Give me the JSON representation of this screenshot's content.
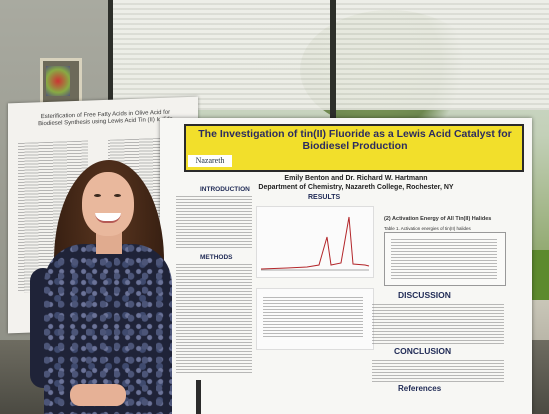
{
  "poster_main": {
    "title": "The Investigation of tin(II) Fluoride as a Lewis Acid Catalyst for Biodiesel Production",
    "authors": "Emily Benton and Dr. Richard W. Hartmann",
    "affiliation": "Department of Chemistry, Nazareth College, Rochester, NY",
    "logo_text": "Nazareth",
    "sections": {
      "introduction": "INTRODUCTION",
      "results": "RESULTS",
      "methods": "METHODS",
      "discussion": "DISCUSSION",
      "conclusion": "CONCLUSION",
      "references": "References"
    },
    "table_caption": "(2) Activation Energy of All Tin(II) Halides",
    "table_title": "Table 1. Activation energies of tin(II) halides"
  },
  "poster_left": {
    "title": "Esterification of Free Fatty Acids in Olive Acid for Biodiesel Synthesis using Lewis Acid Tin (II) Iodide"
  },
  "colors": {
    "title_banner": "#f2df2b",
    "title_text": "#2c2c60"
  }
}
